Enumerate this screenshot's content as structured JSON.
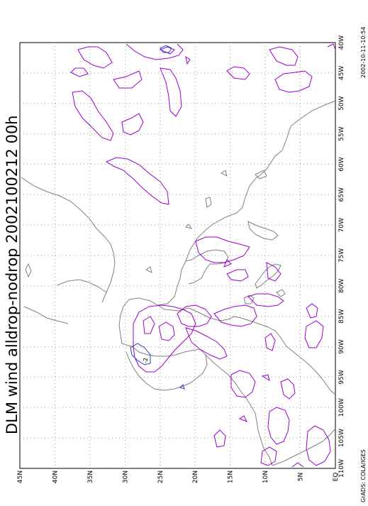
{
  "title": "DLM wind alldrop-nodrop 2002100212 00h",
  "timestamp": "2002-10-11-10:54",
  "credit": "GrADS: COLA/IGES",
  "lat_labels": [
    "45N",
    "40N",
    "35N",
    "30N",
    "25N",
    "20N",
    "15N",
    "10N",
    "5N",
    "EQ"
  ],
  "lon_labels": [
    "40W",
    "45W",
    "50W",
    "55W",
    "60W",
    "65W",
    "70W",
    "75W",
    "80W",
    "85W",
    "90W",
    "95W",
    "100W",
    "105W",
    "110W"
  ],
  "contour_labels": [
    "-2"
  ],
  "colors": {
    "coast": "#808080",
    "grid": "#9a9a9a",
    "positive_contour": "#9900cc",
    "negative_contour": "#1f3fbf",
    "frame": "#000000"
  }
}
